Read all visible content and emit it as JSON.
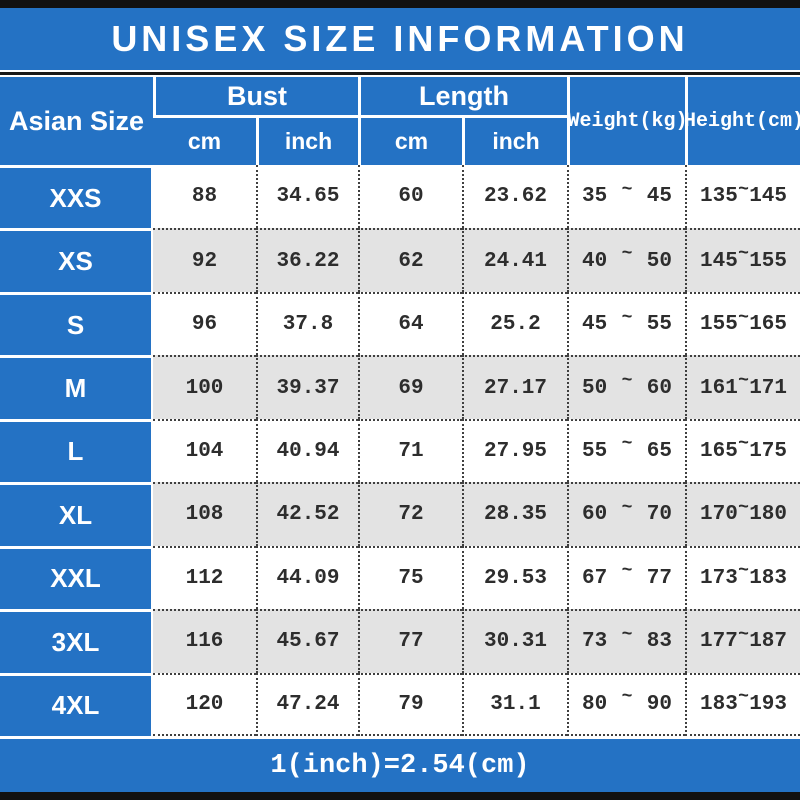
{
  "title": "UNISEX SIZE INFORMATION",
  "footer_note": "1(inch)=2.54(cm)",
  "colors": {
    "accent_blue": "#2472c4",
    "row_shade": "#e3e3e3",
    "bar_black": "#111111",
    "dotted_border": "#3f3f3f"
  },
  "table": {
    "corner_header": "Asian Size",
    "bust_header": "Bust",
    "length_header": "Length",
    "weight_header": "Weight(kg)",
    "height_header": "Height(cm)",
    "unit_cm": "cm",
    "unit_inch": "inch",
    "tilde": "~"
  },
  "chart_data": {
    "type": "table",
    "title": "UNISEX SIZE INFORMATION",
    "columns": [
      "Asian Size",
      "Bust cm",
      "Bust inch",
      "Length cm",
      "Length inch",
      "Weight(kg) min",
      "Weight(kg) max",
      "Height(cm) min",
      "Height(cm) max"
    ],
    "note": "1(inch)=2.54(cm)",
    "rows": [
      {
        "size": "XXS",
        "bust_cm": "88",
        "bust_inch": "34.65",
        "length_cm": "60",
        "length_inch": "23.62",
        "weight_min": "35",
        "weight_max": "45",
        "height_min": "135",
        "height_max": "145",
        "shaded": false
      },
      {
        "size": "XS",
        "bust_cm": "92",
        "bust_inch": "36.22",
        "length_cm": "62",
        "length_inch": "24.41",
        "weight_min": "40",
        "weight_max": "50",
        "height_min": "145",
        "height_max": "155",
        "shaded": true
      },
      {
        "size": "S",
        "bust_cm": "96",
        "bust_inch": "37.8",
        "length_cm": "64",
        "length_inch": "25.2",
        "weight_min": "45",
        "weight_max": "55",
        "height_min": "155",
        "height_max": "165",
        "shaded": false
      },
      {
        "size": "M",
        "bust_cm": "100",
        "bust_inch": "39.37",
        "length_cm": "69",
        "length_inch": "27.17",
        "weight_min": "50",
        "weight_max": "60",
        "height_min": "161",
        "height_max": "171",
        "shaded": true
      },
      {
        "size": "L",
        "bust_cm": "104",
        "bust_inch": "40.94",
        "length_cm": "71",
        "length_inch": "27.95",
        "weight_min": "55",
        "weight_max": "65",
        "height_min": "165",
        "height_max": "175",
        "shaded": false
      },
      {
        "size": "XL",
        "bust_cm": "108",
        "bust_inch": "42.52",
        "length_cm": "72",
        "length_inch": "28.35",
        "weight_min": "60",
        "weight_max": "70",
        "height_min": "170",
        "height_max": "180",
        "shaded": true
      },
      {
        "size": "XXL",
        "bust_cm": "112",
        "bust_inch": "44.09",
        "length_cm": "75",
        "length_inch": "29.53",
        "weight_min": "67",
        "weight_max": "77",
        "height_min": "173",
        "height_max": "183",
        "shaded": false
      },
      {
        "size": "3XL",
        "bust_cm": "116",
        "bust_inch": "45.67",
        "length_cm": "77",
        "length_inch": "30.31",
        "weight_min": "73",
        "weight_max": "83",
        "height_min": "177",
        "height_max": "187",
        "shaded": true
      },
      {
        "size": "4XL",
        "bust_cm": "120",
        "bust_inch": "47.24",
        "length_cm": "79",
        "length_inch": "31.1",
        "weight_min": "80",
        "weight_max": "90",
        "height_min": "183",
        "height_max": "193",
        "shaded": false
      }
    ]
  }
}
